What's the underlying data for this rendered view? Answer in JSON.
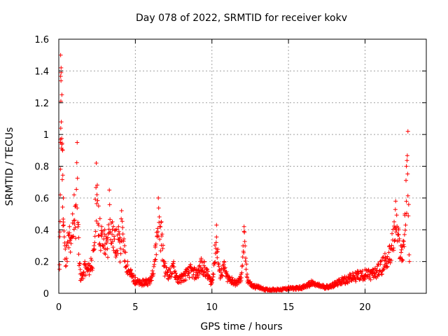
{
  "chart_data": {
    "type": "scatter",
    "title": "Day 078 of 2022, SRMTID for receiver kokv",
    "xlabel": "GPS time / hours",
    "ylabel": "SRMTID / TECUs",
    "xlim": [
      0,
      24
    ],
    "ylim": [
      0,
      1.6
    ],
    "x_ticks": [
      0,
      5,
      10,
      15,
      20
    ],
    "x_tick_labels": [
      "0",
      "5",
      "10",
      "15",
      "20"
    ],
    "y_ticks": [
      0,
      0.2,
      0.4,
      0.6,
      0.8,
      1,
      1.2,
      1.4,
      1.6
    ],
    "y_tick_labels": [
      "0",
      "0.2",
      "0.4",
      "0.6",
      "0.8",
      "1",
      "1.2",
      "1.4",
      "1.6"
    ],
    "grid": true,
    "marker": "+",
    "series": [
      {
        "name": "SRMTID",
        "color": "#ff0000",
        "envelope_points": [
          [
            0.05,
            0.18
          ],
          [
            0.1,
            0.95
          ],
          [
            0.12,
            1.5
          ],
          [
            0.15,
            1.42
          ],
          [
            0.2,
            1.25
          ],
          [
            0.25,
            0.9
          ],
          [
            0.3,
            0.6
          ],
          [
            0.4,
            0.3
          ],
          [
            0.5,
            0.3
          ],
          [
            0.6,
            0.38
          ],
          [
            0.7,
            0.42
          ],
          [
            0.8,
            0.35
          ],
          [
            0.9,
            0.5
          ],
          [
            1.0,
            0.62
          ],
          [
            1.1,
            0.55
          ],
          [
            1.2,
            0.95
          ],
          [
            1.3,
            0.35
          ],
          [
            1.4,
            0.15
          ],
          [
            1.5,
            0.12
          ],
          [
            1.7,
            0.2
          ],
          [
            1.9,
            0.18
          ],
          [
            2.1,
            0.22
          ],
          [
            2.3,
            0.3
          ],
          [
            2.45,
            0.82
          ],
          [
            2.6,
            0.55
          ],
          [
            2.8,
            0.42
          ],
          [
            3.0,
            0.4
          ],
          [
            3.2,
            0.35
          ],
          [
            3.3,
            0.65
          ],
          [
            3.5,
            0.45
          ],
          [
            3.7,
            0.4
          ],
          [
            3.9,
            0.42
          ],
          [
            4.0,
            0.35
          ],
          [
            4.1,
            0.52
          ],
          [
            4.3,
            0.3
          ],
          [
            4.5,
            0.2
          ],
          [
            4.7,
            0.15
          ],
          [
            5.0,
            0.1
          ],
          [
            5.3,
            0.08
          ],
          [
            5.7,
            0.09
          ],
          [
            6.0,
            0.1
          ],
          [
            6.3,
            0.3
          ],
          [
            6.5,
            0.6
          ],
          [
            6.7,
            0.45
          ],
          [
            6.9,
            0.2
          ],
          [
            7.2,
            0.15
          ],
          [
            7.5,
            0.2
          ],
          [
            7.8,
            0.1
          ],
          [
            8.0,
            0.12
          ],
          [
            8.3,
            0.15
          ],
          [
            8.6,
            0.18
          ],
          [
            9.0,
            0.15
          ],
          [
            9.3,
            0.22
          ],
          [
            9.5,
            0.2
          ],
          [
            9.7,
            0.15
          ],
          [
            10.0,
            0.08
          ],
          [
            10.3,
            0.43
          ],
          [
            10.5,
            0.15
          ],
          [
            10.8,
            0.2
          ],
          [
            11.0,
            0.12
          ],
          [
            11.3,
            0.1
          ],
          [
            11.6,
            0.08
          ],
          [
            11.9,
            0.12
          ],
          [
            12.1,
            0.42
          ],
          [
            12.3,
            0.12
          ],
          [
            12.6,
            0.06
          ],
          [
            13.0,
            0.05
          ],
          [
            13.5,
            0.03
          ],
          [
            14.0,
            0.03
          ],
          [
            14.5,
            0.03
          ],
          [
            15.0,
            0.04
          ],
          [
            15.5,
            0.04
          ],
          [
            16.0,
            0.05
          ],
          [
            16.5,
            0.08
          ],
          [
            17.0,
            0.06
          ],
          [
            17.5,
            0.05
          ],
          [
            18.0,
            0.07
          ],
          [
            18.5,
            0.1
          ],
          [
            19.0,
            0.12
          ],
          [
            19.5,
            0.14
          ],
          [
            20.0,
            0.15
          ],
          [
            20.5,
            0.15
          ],
          [
            21.0,
            0.2
          ],
          [
            21.3,
            0.25
          ],
          [
            21.6,
            0.3
          ],
          [
            21.9,
            0.45
          ],
          [
            22.0,
            0.58
          ],
          [
            22.2,
            0.4
          ],
          [
            22.4,
            0.3
          ],
          [
            22.6,
            0.5
          ],
          [
            22.7,
            0.8
          ],
          [
            22.8,
            1.02
          ],
          [
            22.9,
            0.2
          ]
        ]
      }
    ]
  }
}
